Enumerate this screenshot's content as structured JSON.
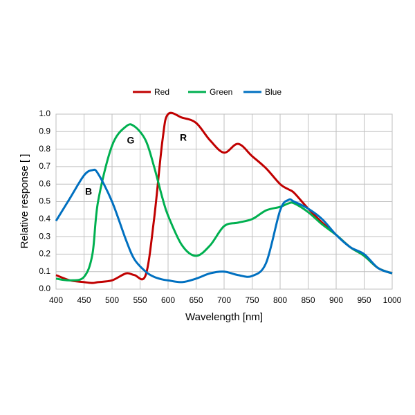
{
  "chart_data": {
    "type": "line",
    "xlabel": "Wavelength [nm]",
    "ylabel": "Relative response [ ]",
    "x": [
      400,
      425,
      450,
      465,
      475,
      500,
      525,
      540,
      560,
      575,
      590,
      600,
      625,
      650,
      675,
      700,
      725,
      750,
      775,
      800,
      815,
      825,
      850,
      875,
      900,
      925,
      950,
      975,
      1000
    ],
    "series": [
      {
        "name": "Red",
        "color": "#c00000",
        "values": [
          0.08,
          0.05,
          0.04,
          0.035,
          0.04,
          0.05,
          0.09,
          0.08,
          0.08,
          0.4,
          0.85,
          1.0,
          0.98,
          0.95,
          0.85,
          0.78,
          0.83,
          0.76,
          0.69,
          0.6,
          0.57,
          0.55,
          0.46,
          0.38,
          0.31,
          0.24,
          0.19,
          0.12,
          0.09
        ]
      },
      {
        "name": "Green",
        "color": "#00b050",
        "values": [
          0.06,
          0.05,
          0.07,
          0.2,
          0.5,
          0.82,
          0.93,
          0.93,
          0.85,
          0.7,
          0.52,
          0.42,
          0.25,
          0.19,
          0.25,
          0.36,
          0.38,
          0.4,
          0.45,
          0.47,
          0.49,
          0.49,
          0.44,
          0.37,
          0.31,
          0.24,
          0.19,
          0.12,
          0.09
        ]
      },
      {
        "name": "Blue",
        "color": "#0070c0",
        "values": [
          0.39,
          0.52,
          0.65,
          0.68,
          0.66,
          0.5,
          0.28,
          0.17,
          0.1,
          0.07,
          0.055,
          0.05,
          0.04,
          0.06,
          0.09,
          0.1,
          0.08,
          0.075,
          0.15,
          0.45,
          0.51,
          0.5,
          0.46,
          0.4,
          0.31,
          0.24,
          0.2,
          0.12,
          0.09
        ]
      }
    ],
    "annotations": [
      "R",
      "G",
      "B"
    ],
    "xlim": [
      400,
      1000
    ],
    "xticks": [
      400,
      450,
      500,
      550,
      600,
      650,
      700,
      750,
      800,
      850,
      900,
      950,
      1000
    ],
    "ylim": [
      0,
      1
    ],
    "yticks": [
      {
        "value": 0,
        "label": "0.0"
      },
      0.1,
      0.2,
      0.3,
      0.4,
      0.5,
      0.6,
      0.7,
      0.8,
      0.9,
      {
        "value": 1,
        "label": "1.0"
      }
    ],
    "grid": true,
    "legend": "top"
  }
}
